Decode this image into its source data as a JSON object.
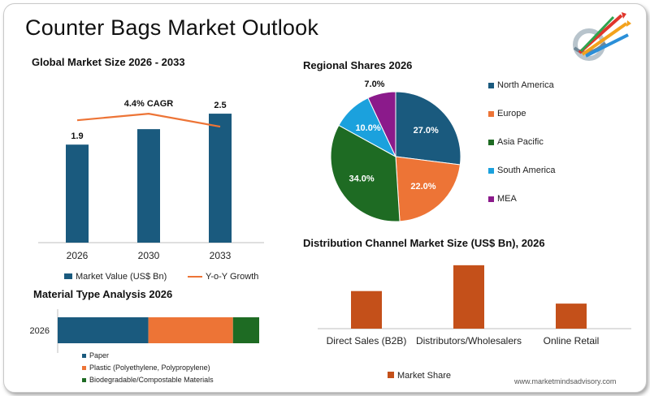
{
  "page": {
    "title": "Counter Bags Market Outlook",
    "footer": "www.marketmindsadvisory.com"
  },
  "colors": {
    "blue": "#1a5a7e",
    "orange": "#ed7436",
    "green": "#1e6b23",
    "cyan": "#1ba1dd",
    "purple": "#8b1a8b",
    "rust": "#c4501a"
  },
  "chart_data": [
    {
      "type": "bar",
      "title": "Global Market Size 2026 - 2033",
      "categories": [
        "2026",
        "2030",
        "2033"
      ],
      "series": [
        {
          "name": "Market Value (US$ Bn)",
          "values": [
            1.9,
            2.2,
            2.5
          ],
          "data_labels": [
            "1.9",
            "",
            "2.5"
          ]
        },
        {
          "name": "Y-o-Y Growth",
          "type": "line"
        }
      ],
      "annotation": "4.4% CAGR",
      "ylim": [
        0,
        2.8
      ]
    },
    {
      "type": "pie",
      "title": "Regional Shares 2026",
      "labels": [
        "North America",
        "Europe",
        "Asia Pacific",
        "South America",
        "MEA"
      ],
      "values": [
        27.0,
        22.0,
        34.0,
        10.0,
        7.0
      ],
      "value_labels": [
        "27.0%",
        "22.0%",
        "34.0%",
        "10.0%",
        "7.0%"
      ],
      "legend_position": "right"
    },
    {
      "type": "bar",
      "orientation": "horizontal-stacked",
      "title": "Material Type Analysis 2026",
      "categories": [
        "2026"
      ],
      "series": [
        {
          "name": "Paper",
          "values": [
            45
          ]
        },
        {
          "name": "Plastic (Polyethylene, Polypropylene)",
          "values": [
            42
          ]
        },
        {
          "name": "Biodegradable/Compostable Materials",
          "values": [
            13
          ]
        }
      ],
      "legend_position": "bottom"
    },
    {
      "type": "bar",
      "title": "Distribution Channel Market Size (US$ Bn), 2026",
      "categories": [
        "Direct Sales (B2B)",
        "Distributors/Wholesalers",
        "Online Retail"
      ],
      "series": [
        {
          "name": "Market Share",
          "values": [
            48,
            81,
            32
          ]
        }
      ],
      "ylim": [
        0,
        85
      ],
      "legend_position": "bottom"
    }
  ]
}
